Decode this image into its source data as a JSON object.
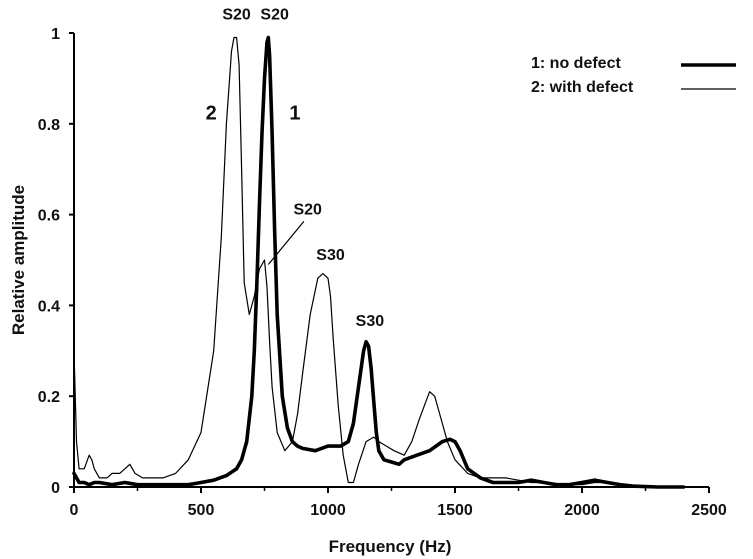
{
  "chart_data": {
    "type": "line",
    "xlabel": "Frequency (Hz)",
    "ylabel": "Relative amplitude",
    "xlim": [
      0,
      2500
    ],
    "ylim": [
      0,
      1
    ],
    "xticks": [
      "0",
      "500",
      "1000",
      "1500",
      "2000",
      "2500"
    ],
    "yticks": [
      "0",
      "0.2",
      "0.4",
      "0.6",
      "0.8",
      "1"
    ],
    "grid": false,
    "legend": "top-right",
    "series": [
      {
        "name": "1: no defect",
        "label": "1",
        "color": "#000000",
        "x": [
          0,
          20,
          40,
          60,
          80,
          100,
          150,
          200,
          250,
          300,
          350,
          400,
          450,
          500,
          550,
          600,
          640,
          660,
          680,
          700,
          710,
          720,
          730,
          740,
          750,
          760,
          765,
          770,
          780,
          790,
          800,
          820,
          840,
          860,
          880,
          900,
          950,
          1000,
          1030,
          1050,
          1080,
          1100,
          1120,
          1140,
          1150,
          1160,
          1170,
          1180,
          1190,
          1200,
          1220,
          1250,
          1280,
          1300,
          1350,
          1400,
          1450,
          1480,
          1500,
          1520,
          1550,
          1600,
          1650,
          1700,
          1750,
          1800,
          1850,
          1900,
          1950,
          2000,
          2050,
          2100,
          2150,
          2200,
          2300,
          2400
        ],
        "y": [
          0.03,
          0.01,
          0.01,
          0.005,
          0.01,
          0.01,
          0.005,
          0.01,
          0.005,
          0.005,
          0.005,
          0.005,
          0.005,
          0.01,
          0.015,
          0.025,
          0.04,
          0.06,
          0.1,
          0.2,
          0.3,
          0.45,
          0.62,
          0.78,
          0.9,
          0.98,
          0.99,
          0.95,
          0.78,
          0.56,
          0.38,
          0.2,
          0.13,
          0.1,
          0.09,
          0.085,
          0.08,
          0.09,
          0.09,
          0.09,
          0.1,
          0.14,
          0.22,
          0.3,
          0.32,
          0.31,
          0.26,
          0.19,
          0.12,
          0.08,
          0.06,
          0.055,
          0.05,
          0.06,
          0.07,
          0.08,
          0.1,
          0.105,
          0.1,
          0.08,
          0.04,
          0.02,
          0.01,
          0.01,
          0.01,
          0.015,
          0.01,
          0.005,
          0.005,
          0.01,
          0.015,
          0.01,
          0.005,
          0.002,
          0.0,
          0.0
        ]
      },
      {
        "name": "2: with defect",
        "label": "2",
        "color": "#000000",
        "x": [
          0,
          10,
          20,
          40,
          60,
          70,
          80,
          100,
          130,
          150,
          180,
          200,
          220,
          240,
          270,
          300,
          350,
          400,
          450,
          500,
          550,
          580,
          600,
          620,
          630,
          640,
          650,
          660,
          670,
          690,
          710,
          730,
          750,
          760,
          770,
          780,
          800,
          830,
          860,
          880,
          900,
          930,
          960,
          980,
          1000,
          1010,
          1020,
          1040,
          1060,
          1080,
          1100,
          1120,
          1150,
          1180,
          1200,
          1230,
          1260,
          1300,
          1330,
          1360,
          1380,
          1400,
          1420,
          1440,
          1470,
          1500,
          1550,
          1600,
          1650,
          1700,
          1750,
          1800,
          1850,
          1900,
          1950,
          2000,
          2050,
          2100,
          2150,
          2200,
          2300,
          2400
        ],
        "y": [
          0.3,
          0.1,
          0.04,
          0.04,
          0.07,
          0.06,
          0.04,
          0.02,
          0.02,
          0.03,
          0.03,
          0.04,
          0.05,
          0.03,
          0.02,
          0.02,
          0.02,
          0.03,
          0.06,
          0.12,
          0.3,
          0.55,
          0.8,
          0.96,
          0.99,
          0.99,
          0.93,
          0.7,
          0.45,
          0.38,
          0.42,
          0.48,
          0.5,
          0.44,
          0.32,
          0.22,
          0.12,
          0.08,
          0.1,
          0.16,
          0.25,
          0.38,
          0.46,
          0.47,
          0.46,
          0.42,
          0.33,
          0.18,
          0.07,
          0.01,
          0.01,
          0.05,
          0.1,
          0.11,
          0.1,
          0.09,
          0.08,
          0.07,
          0.1,
          0.15,
          0.18,
          0.21,
          0.2,
          0.16,
          0.1,
          0.06,
          0.03,
          0.02,
          0.02,
          0.02,
          0.015,
          0.01,
          0.01,
          0.005,
          0.005,
          0.005,
          0.01,
          0.01,
          0.005,
          0.002,
          0.0,
          0.0
        ]
      }
    ],
    "annotations": [
      {
        "text": "S20",
        "x": 640,
        "y": 1.03
      },
      {
        "text": "S20",
        "x": 790,
        "y": 1.03
      },
      {
        "text": "S20",
        "x": 920,
        "y": 0.6
      },
      {
        "text": "S30",
        "x": 1010,
        "y": 0.5
      },
      {
        "text": "S30",
        "x": 1165,
        "y": 0.355
      }
    ]
  }
}
